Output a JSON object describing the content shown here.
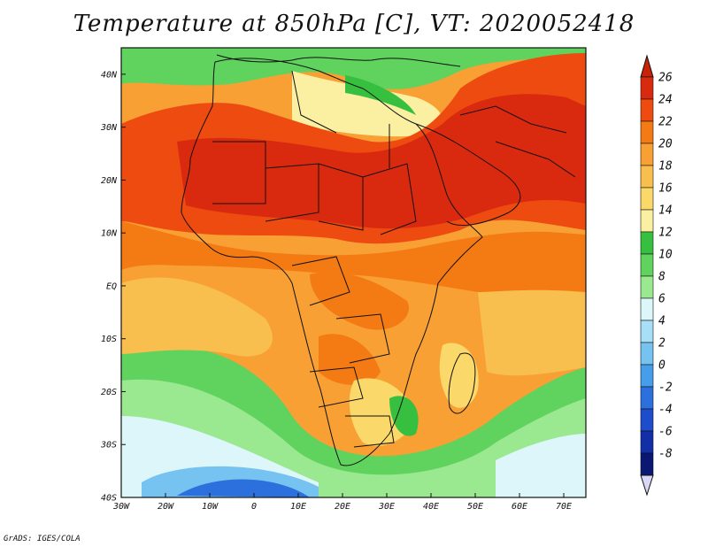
{
  "title": "Temperature at 850hPa [C], VT: 2020052418",
  "credit": "GrADS: IGES/COLA",
  "map": {
    "lat_ticks": [
      "40N",
      "30N",
      "20N",
      "10N",
      "EQ",
      "10S",
      "20S",
      "30S",
      "40S"
    ],
    "lon_ticks": [
      "30W",
      "20W",
      "10W",
      "0",
      "10E",
      "20E",
      "30E",
      "40E",
      "50E",
      "60E",
      "70E"
    ],
    "lat_range": [
      -40,
      45
    ],
    "lon_range": [
      -30,
      75
    ]
  },
  "colorbar": {
    "labels": [
      "26",
      "24",
      "22",
      "20",
      "18",
      "16",
      "14",
      "12",
      "10",
      "8",
      "6",
      "4",
      "2",
      "0",
      "-2",
      "-4",
      "-6",
      "-8"
    ],
    "colors": [
      "#d92a10",
      "#ee4b10",
      "#f47a14",
      "#f8a034",
      "#f9bf4e",
      "#fad86a",
      "#fbf0a2",
      "#37c040",
      "#5fd35e",
      "#9ae890",
      "#dcf6fa",
      "#a7dff7",
      "#76c3f1",
      "#469dea",
      "#2b70dc",
      "#1d4ccc",
      "#132fa8",
      "#0b1772"
    ],
    "top_color": "#c9220a",
    "bottom_color": "#d8d8f6"
  }
}
